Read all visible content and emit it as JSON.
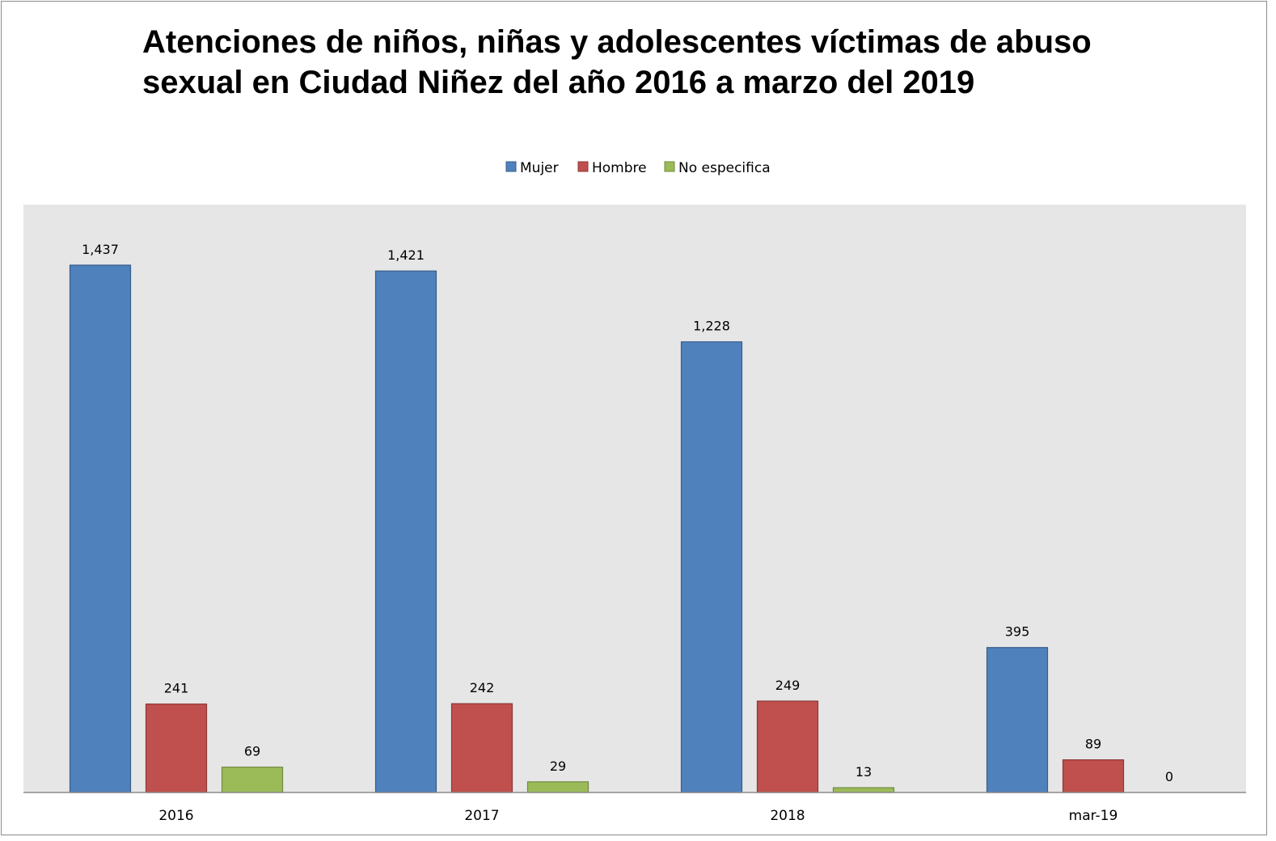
{
  "chart_data": {
    "type": "bar",
    "title_lines": [
      "Atenciones de niños, niñas y adolescentes víctimas de abuso",
      "sexual en Ciudad Niñez del año 2016 a marzo del 2019"
    ],
    "categories": [
      "2016",
      "2017",
      "2018",
      "mar-19"
    ],
    "series": [
      {
        "name": "Mujer",
        "color": "#4f81bd",
        "border": "#385d8a",
        "values": [
          1437,
          1421,
          1228,
          395
        ],
        "labels": [
          "1,437",
          "1,421",
          "1,228",
          "395"
        ]
      },
      {
        "name": "Hombre",
        "color": "#c0504d",
        "border": "#8c3836",
        "values": [
          241,
          242,
          249,
          89
        ],
        "labels": [
          "241",
          "242",
          "249",
          "89"
        ]
      },
      {
        "name": "No especifica",
        "color": "#9bbb59",
        "border": "#71893f",
        "values": [
          69,
          29,
          13,
          0
        ],
        "labels": [
          "69",
          "29",
          "13",
          "0"
        ]
      }
    ],
    "ylim": [
      0,
      1600
    ],
    "grid": false,
    "legend_position": "top-center",
    "plot_background": "#e6e6e6",
    "xlabel": "",
    "ylabel": ""
  }
}
